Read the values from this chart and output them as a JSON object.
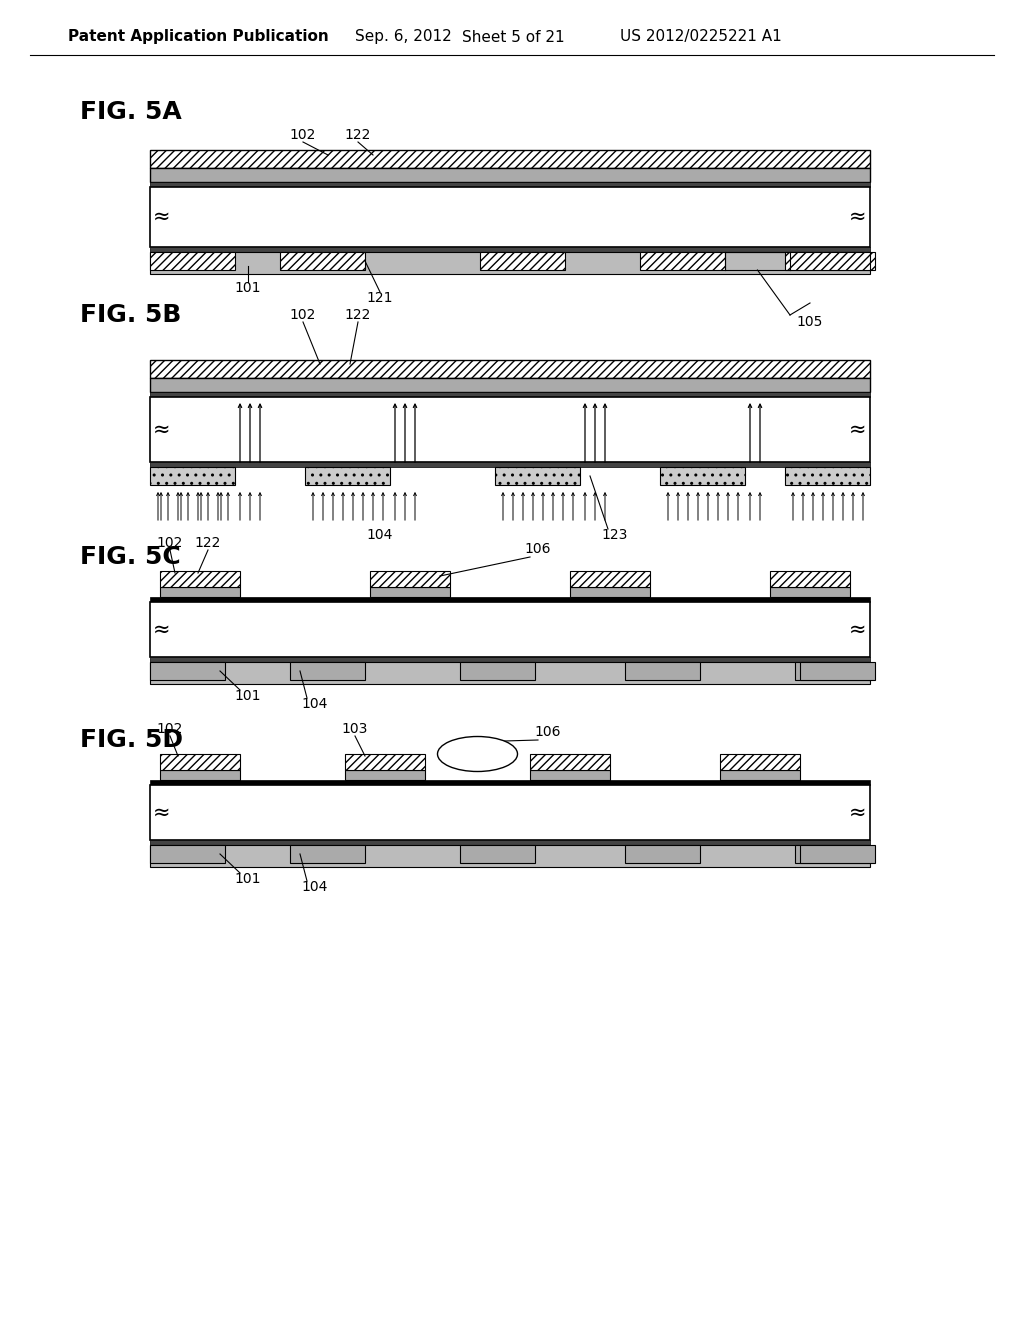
{
  "bg_color": "#ffffff",
  "header_left": "Patent Application Publication",
  "header_date": "Sep. 6, 2012",
  "header_sheet": "Sheet 5 of 21",
  "header_patent": "US 2012/0225221 A1",
  "fig5a_label": "FIG. 5A",
  "fig5b_label": "FIG. 5B",
  "fig5c_label": "FIG. 5C",
  "fig5d_label": "FIG. 5D",
  "hatch_gray": "#cccccc",
  "mid_gray": "#aaaaaa",
  "dark_gray": "#444444",
  "light_gray": "#dddddd"
}
